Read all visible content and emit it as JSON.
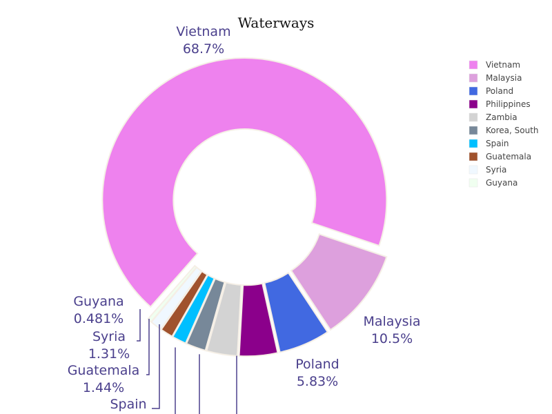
{
  "chart_data": {
    "type": "pie",
    "hole": 0.5,
    "title": "Waterways",
    "legend_position": "right",
    "slices": [
      {
        "label": "Vietnam",
        "percent": 68.7,
        "percent_text": "68.7%",
        "color": "#ee82ee",
        "pulled": true
      },
      {
        "label": "Malaysia",
        "percent": 10.5,
        "percent_text": "10.5%",
        "color": "#dda0dd",
        "pulled": true
      },
      {
        "label": "Poland",
        "percent": 5.83,
        "percent_text": "5.83%",
        "color": "#4169e1",
        "pulled": true
      },
      {
        "label": "Philippines",
        "percent": 4.35,
        "percent_text": "",
        "color": "#8b008b",
        "pulled": true
      },
      {
        "label": "Zambia",
        "percent": 3.5,
        "percent_text": "",
        "color": "#d3d3d3",
        "pulled": true
      },
      {
        "label": "Korea, South",
        "percent": 2.26,
        "percent_text": "",
        "color": "#778899",
        "pulled": true
      },
      {
        "label": "Spain",
        "percent": 1.62,
        "percent_text": "",
        "color": "#00bfff",
        "pulled": true
      },
      {
        "label": "Guatemala",
        "percent": 1.44,
        "percent_text": "1.44%",
        "color": "#a0522d",
        "pulled": true
      },
      {
        "label": "Syria",
        "percent": 1.31,
        "percent_text": "1.31%",
        "color": "#f0f8ff",
        "pulled": true
      },
      {
        "label": "Guyana",
        "percent": 0.481,
        "percent_text": "0.481%",
        "color": "#f0fff0",
        "pulled": true
      }
    ]
  }
}
